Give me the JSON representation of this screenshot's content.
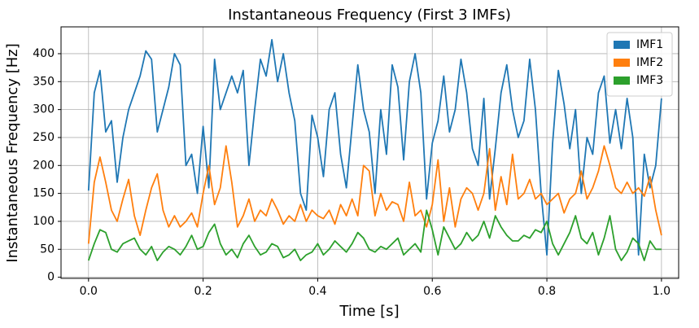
{
  "chart_data": {
    "type": "line",
    "title": "Instantaneous Frequency (First 3 IMFs)",
    "xlabel": "Time [s]",
    "ylabel": "Instantaneous Frequency [Hz]",
    "x": [
      0,
      0.01,
      0.02,
      0.03,
      0.04,
      0.05,
      0.06,
      0.07,
      0.08,
      0.09,
      0.1,
      0.11,
      0.12,
      0.13,
      0.14,
      0.15,
      0.16,
      0.17,
      0.18,
      0.19,
      0.2,
      0.21,
      0.22,
      0.23,
      0.24,
      0.25,
      0.26,
      0.27,
      0.28,
      0.29,
      0.3,
      0.31,
      0.32,
      0.33,
      0.34,
      0.35,
      0.36,
      0.37,
      0.38,
      0.39,
      0.4,
      0.41,
      0.42,
      0.43,
      0.44,
      0.45,
      0.46,
      0.47,
      0.48,
      0.49,
      0.5,
      0.51,
      0.52,
      0.53,
      0.54,
      0.55,
      0.56,
      0.57,
      0.58,
      0.59,
      0.6,
      0.61,
      0.62,
      0.63,
      0.64,
      0.65,
      0.66,
      0.67,
      0.68,
      0.69,
      0.7,
      0.71,
      0.72,
      0.73,
      0.74,
      0.75,
      0.76,
      0.77,
      0.78,
      0.79,
      0.8,
      0.81,
      0.82,
      0.83,
      0.84,
      0.85,
      0.86,
      0.87,
      0.88,
      0.89,
      0.9,
      0.91,
      0.92,
      0.93,
      0.94,
      0.95,
      0.96,
      0.97,
      0.98,
      0.99,
      1
    ],
    "series": [
      {
        "name": "IMF1",
        "color": "#1f77b4",
        "values": [
          155,
          330,
          370,
          260,
          280,
          170,
          250,
          300,
          330,
          360,
          405,
          390,
          260,
          300,
          340,
          400,
          380,
          200,
          220,
          150,
          270,
          160,
          390,
          300,
          330,
          360,
          330,
          370,
          200,
          300,
          390,
          360,
          425,
          350,
          400,
          330,
          280,
          150,
          120,
          290,
          250,
          180,
          300,
          330,
          220,
          160,
          270,
          380,
          300,
          260,
          150,
          300,
          220,
          380,
          340,
          210,
          350,
          400,
          330,
          140,
          240,
          280,
          360,
          260,
          300,
          390,
          330,
          230,
          200,
          320,
          140,
          230,
          330,
          380,
          300,
          250,
          280,
          390,
          300,
          150,
          40,
          240,
          370,
          310,
          230,
          300,
          150,
          250,
          220,
          330,
          360,
          240,
          300,
          230,
          320,
          250,
          40,
          220,
          160,
          200,
          320
        ]
      },
      {
        "name": "IMF2",
        "color": "#ff7f0e",
        "values": [
          60,
          170,
          215,
          170,
          120,
          100,
          140,
          175,
          110,
          75,
          120,
          160,
          185,
          120,
          90,
          110,
          90,
          100,
          115,
          90,
          150,
          200,
          130,
          160,
          235,
          170,
          90,
          110,
          140,
          100,
          120,
          110,
          140,
          120,
          95,
          110,
          100,
          130,
          100,
          120,
          110,
          105,
          120,
          95,
          130,
          110,
          140,
          110,
          200,
          190,
          110,
          150,
          120,
          135,
          130,
          100,
          170,
          110,
          120,
          90,
          130,
          210,
          100,
          160,
          90,
          140,
          160,
          150,
          120,
          150,
          230,
          120,
          180,
          130,
          220,
          140,
          150,
          175,
          140,
          150,
          130,
          140,
          150,
          115,
          140,
          150,
          190,
          140,
          160,
          190,
          235,
          200,
          160,
          150,
          170,
          150,
          160,
          145,
          180,
          120,
          75
        ]
      },
      {
        "name": "IMF3",
        "color": "#2ca02c",
        "values": [
          30,
          60,
          85,
          80,
          50,
          45,
          60,
          65,
          70,
          50,
          40,
          55,
          30,
          45,
          55,
          50,
          40,
          55,
          75,
          50,
          55,
          80,
          95,
          60,
          40,
          50,
          35,
          60,
          75,
          55,
          40,
          45,
          60,
          55,
          35,
          40,
          50,
          30,
          40,
          45,
          60,
          40,
          50,
          65,
          55,
          45,
          60,
          80,
          70,
          50,
          45,
          55,
          50,
          60,
          70,
          40,
          50,
          60,
          45,
          120,
          85,
          40,
          90,
          70,
          50,
          60,
          80,
          65,
          75,
          100,
          70,
          110,
          90,
          75,
          65,
          65,
          75,
          70,
          85,
          80,
          100,
          60,
          40,
          60,
          80,
          110,
          70,
          60,
          80,
          40,
          70,
          110,
          50,
          30,
          45,
          70,
          60,
          30,
          65,
          50,
          50
        ]
      }
    ],
    "xlim": [
      -0.048,
      1.03
    ],
    "ylim": [
      -2,
      448
    ],
    "xticks": [
      {
        "value": 0,
        "label": "0.0"
      },
      0.2,
      0.4,
      0.6,
      0.8,
      {
        "value": 1,
        "label": "1.0"
      }
    ],
    "yticks": [
      0,
      50,
      100,
      150,
      200,
      250,
      300,
      350,
      400
    ],
    "grid": true,
    "legend": "upper right"
  }
}
